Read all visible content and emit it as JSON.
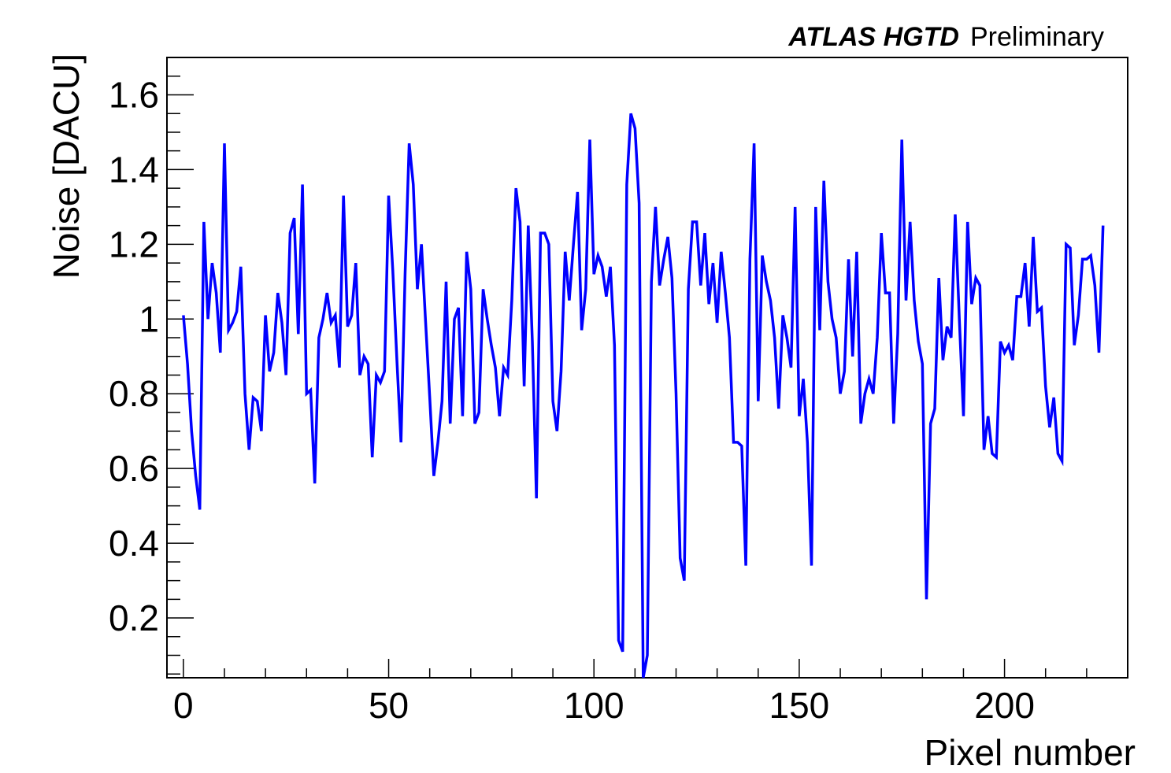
{
  "header": {
    "experiment": "ATLAS HGTD",
    "status": "Preliminary"
  },
  "chart_data": {
    "type": "line",
    "xlabel": "Pixel number",
    "ylabel": "Noise [DACU]",
    "xlim": [
      -4,
      230
    ],
    "ylim": [
      0.04,
      1.7
    ],
    "xticks": [
      0,
      50,
      100,
      150,
      200
    ],
    "yticks": [
      0.2,
      0.4,
      0.6,
      0.8,
      1,
      1.2,
      1.4,
      1.6
    ],
    "grid": false,
    "line_color": "#0000ff",
    "series": [
      {
        "x": [
          0,
          1,
          2,
          3,
          4,
          5,
          6,
          7,
          8,
          9,
          10,
          11,
          12,
          13,
          14,
          15,
          16,
          17,
          18,
          19,
          20,
          21,
          22,
          23,
          24,
          25,
          26,
          27,
          28,
          29,
          30,
          31,
          32,
          33,
          34,
          35,
          36,
          37,
          38,
          39,
          40,
          41,
          42,
          43,
          44,
          45,
          46,
          47,
          48,
          49,
          50,
          51,
          52,
          53,
          54,
          55,
          56,
          57,
          58,
          59,
          60,
          61,
          62,
          63,
          64,
          65,
          66,
          67,
          68,
          69,
          70,
          71,
          72,
          73,
          74,
          75,
          76,
          77,
          78,
          79,
          80,
          81,
          82,
          83,
          84,
          85,
          86,
          87,
          88,
          89,
          90,
          91,
          92,
          93,
          94,
          95,
          96,
          97,
          98,
          99,
          100,
          101,
          102,
          103,
          104,
          105,
          106,
          107,
          108,
          109,
          110,
          111,
          112,
          113,
          114,
          115,
          116,
          117,
          118,
          119,
          120,
          121,
          122,
          123,
          124,
          125,
          126,
          127,
          128,
          129,
          130,
          131,
          132,
          133,
          134,
          135,
          136,
          137,
          138,
          139,
          140,
          141,
          142,
          143,
          144,
          145,
          146,
          147,
          148,
          149,
          150,
          151,
          152,
          153,
          154,
          155,
          156,
          157,
          158,
          159,
          160,
          161,
          162,
          163,
          164,
          165,
          166,
          167,
          168,
          169,
          170,
          171,
          172,
          173,
          174,
          175,
          176,
          177,
          178,
          179,
          180,
          181,
          182,
          183,
          184,
          185,
          186,
          187,
          188,
          189,
          190,
          191,
          192,
          193,
          194,
          195,
          196,
          197,
          198,
          199,
          200,
          201,
          202,
          203,
          204,
          205,
          206,
          207,
          208,
          209,
          210,
          211,
          212,
          213,
          214,
          215,
          216,
          217,
          218,
          219,
          220,
          221,
          222,
          223,
          224
        ],
        "values": [
          1.01,
          0.88,
          0.7,
          0.58,
          0.49,
          1.26,
          1.0,
          1.15,
          1.07,
          0.91,
          1.47,
          0.97,
          0.99,
          1.02,
          1.14,
          0.8,
          0.65,
          0.79,
          0.78,
          0.7,
          1.01,
          0.86,
          0.91,
          1.07,
          0.99,
          0.85,
          1.23,
          1.27,
          0.96,
          1.36,
          0.8,
          0.81,
          0.56,
          0.95,
          1.0,
          1.07,
          0.99,
          1.01,
          0.87,
          1.33,
          0.98,
          1.01,
          1.15,
          0.85,
          0.9,
          0.88,
          0.63,
          0.85,
          0.83,
          0.86,
          1.33,
          1.13,
          0.89,
          0.67,
          1.12,
          1.47,
          1.36,
          1.08,
          1.2,
          0.99,
          0.79,
          0.58,
          0.67,
          0.78,
          1.1,
          0.72,
          1.0,
          1.03,
          0.74,
          1.18,
          1.08,
          0.72,
          0.75,
          1.08,
          1.0,
          0.93,
          0.87,
          0.74,
          0.87,
          0.85,
          1.05,
          1.35,
          1.26,
          0.82,
          1.25,
          0.94,
          0.52,
          1.23,
          1.23,
          1.2,
          0.78,
          0.7,
          0.86,
          1.18,
          1.05,
          1.2,
          1.34,
          0.97,
          1.08,
          1.48,
          1.12,
          1.17,
          1.14,
          1.06,
          1.14,
          0.93,
          0.14,
          0.11,
          1.36,
          1.55,
          1.51,
          1.31,
          0.04,
          0.1,
          1.1,
          1.3,
          1.09,
          1.16,
          1.22,
          1.11,
          0.8,
          0.36,
          0.3,
          1.08,
          1.26,
          1.26,
          1.09,
          1.23,
          1.04,
          1.15,
          0.99,
          1.18,
          1.07,
          0.95,
          0.67,
          0.67,
          0.66,
          0.34,
          1.16,
          1.47,
          0.78,
          1.17,
          1.1,
          1.05,
          0.95,
          0.76,
          1.01,
          0.95,
          0.87,
          1.3,
          0.74,
          0.84,
          0.67,
          0.34,
          1.3,
          0.97,
          1.37,
          1.1,
          1.0,
          0.95,
          0.8,
          0.86,
          1.16,
          0.9,
          1.18,
          0.72,
          0.8,
          0.84,
          0.8,
          0.95,
          1.23,
          1.07,
          1.07,
          0.72,
          0.96,
          1.48,
          1.05,
          1.26,
          1.05,
          0.94,
          0.88,
          0.25,
          0.72,
          0.76,
          1.11,
          0.89,
          0.98,
          0.95,
          1.28,
          1.0,
          0.74,
          1.26,
          1.04,
          1.11,
          1.09,
          0.65,
          0.74,
          0.64,
          0.63,
          0.94,
          0.91,
          0.93,
          0.89,
          1.06,
          1.06,
          1.15,
          0.98,
          1.22,
          1.02,
          1.03,
          0.82,
          0.71,
          0.79,
          0.64,
          0.62,
          1.2,
          1.19,
          0.93,
          1.01,
          1.16,
          1.16,
          1.17,
          1.09,
          0.91,
          1.25
        ]
      }
    ]
  }
}
